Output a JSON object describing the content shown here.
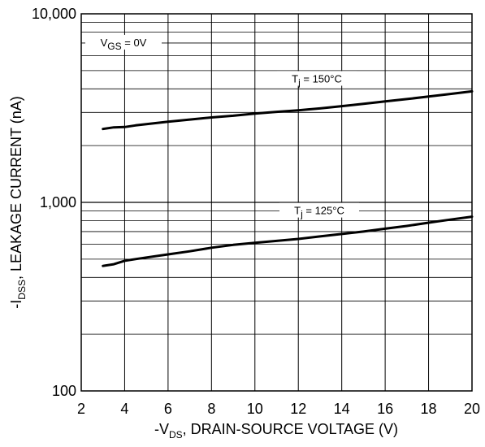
{
  "chart_data": {
    "type": "line",
    "xlabel": {
      "prefix": "-V",
      "sub": "DS",
      "suffix": ", DRAIN-SOURCE VOLTAGE (V)"
    },
    "ylabel": {
      "prefix": "-I",
      "sub": "DSS",
      "suffix": ", LEAKAGE CURRENT (nA)"
    },
    "xlim": [
      2,
      20
    ],
    "ylim": [
      100,
      10000
    ],
    "yscale": "log",
    "grid": true,
    "x_ticks": [
      2,
      4,
      6,
      8,
      10,
      12,
      14,
      16,
      18,
      20
    ],
    "x_tick_labels": [
      "2",
      "4",
      "6",
      "8",
      "10",
      "12",
      "14",
      "16",
      "18",
      "20"
    ],
    "y_ticks": [
      100,
      1000,
      10000
    ],
    "y_tick_labels": [
      "100",
      "1,000",
      "10,000"
    ],
    "condition": {
      "prefix": "V",
      "sub": "GS",
      "suffix": " = 0V"
    },
    "series": [
      {
        "name": "150",
        "label": {
          "prefix": "T",
          "sub": "j",
          "suffix": " = 150°C"
        },
        "x": [
          3,
          3.5,
          4,
          4.5,
          5,
          6,
          7,
          8,
          9,
          10,
          11,
          12,
          13,
          14,
          15,
          16,
          17,
          18,
          19,
          20
        ],
        "y": [
          2450,
          2500,
          2510,
          2560,
          2600,
          2680,
          2750,
          2820,
          2880,
          2960,
          3020,
          3080,
          3150,
          3240,
          3330,
          3430,
          3530,
          3640,
          3760,
          3880
        ]
      },
      {
        "name": "125",
        "label": {
          "prefix": "T",
          "sub": "j",
          "suffix": " = 125°C"
        },
        "x": [
          3,
          3.5,
          4,
          4.5,
          5,
          6,
          7,
          8,
          9,
          10,
          11,
          12,
          13,
          14,
          15,
          16,
          17,
          18,
          19,
          20
        ],
        "y": [
          460,
          470,
          490,
          500,
          510,
          530,
          550,
          575,
          595,
          610,
          625,
          640,
          660,
          680,
          700,
          725,
          750,
          780,
          810,
          840
        ]
      }
    ]
  }
}
